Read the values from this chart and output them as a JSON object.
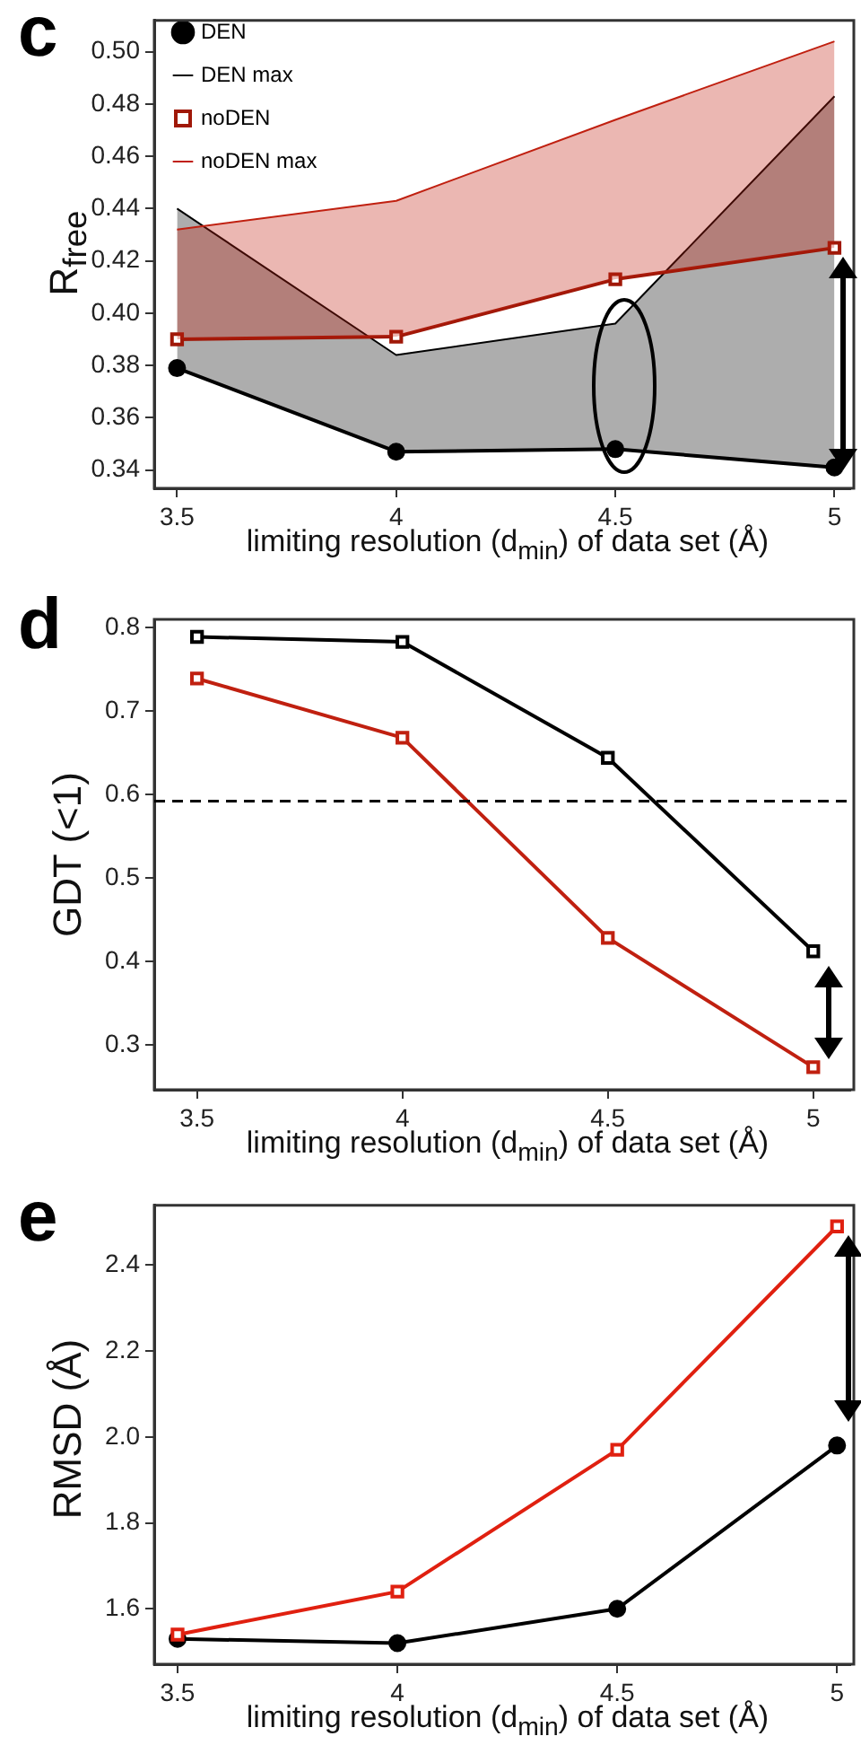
{
  "chart_data": [
    {
      "type": "line",
      "title": "c",
      "xlabel": "limiting resolution (d$_{min}$) of data set (Å)",
      "ylabel": "R$_{free}$",
      "x": [
        3.5,
        4,
        4.5,
        5
      ],
      "xlim": [
        3.448,
        5.036
      ],
      "xticks": [
        3.5,
        4,
        4.5,
        5
      ],
      "ylim": [
        0.333,
        0.512
      ],
      "yticks": [
        0.34,
        0.36,
        0.38,
        {
          "value": 0.4,
          "label": "0.40"
        },
        0.42,
        0.44,
        0.46,
        0.48,
        {
          "value": 0.5,
          "label": "0.50"
        }
      ],
      "grid": false,
      "legend": "top left",
      "series": [
        {
          "name": "DEN",
          "type": "line",
          "color": "#000000",
          "marker": "circle",
          "values": [
            0.379,
            0.347,
            0.348,
            0.341
          ]
        },
        {
          "name": "DEN max",
          "type": "area",
          "color": "#000000",
          "marker": "none",
          "values": [
            0.44,
            0.384,
            0.396,
            0.483
          ]
        },
        {
          "name": "noDEN",
          "type": "line",
          "color": "#a01808",
          "marker": "square",
          "values": [
            0.39,
            0.391,
            0.413,
            0.425
          ]
        },
        {
          "name": "noDEN max",
          "type": "area",
          "color": "#c02010",
          "marker": "none",
          "values": [
            0.432,
            0.443,
            0.474,
            0.504
          ]
        }
      ]
    },
    {
      "type": "line",
      "title": "d",
      "xlabel": "limiting resolution (d$_{min}$) of data set (Å)",
      "ylabel": "GDT (<1)",
      "x": [
        3.5,
        4,
        4.5,
        5
      ],
      "xlim": [
        3.396,
        5.09
      ],
      "xticks": [
        3.5,
        4,
        4.5,
        5
      ],
      "ylim": [
        0.246,
        0.81
      ],
      "yticks": [
        0.3,
        0.4,
        0.5,
        0.6,
        0.7,
        0.8
      ],
      "grid": false,
      "marker": "square",
      "ref_lines": [
        {
          "axis": "y",
          "value": 0.592,
          "color": "#000000",
          "line_style": "dashed"
        }
      ],
      "series": [
        {
          "color": "#000000",
          "values": [
            0.789,
            0.783,
            0.644,
            0.412
          ]
        },
        {
          "color": "#c02010",
          "values": [
            0.739,
            0.668,
            0.428,
            0.273
          ]
        }
      ]
    },
    {
      "type": "line",
      "title": "e",
      "xlabel": "limiting resolution (d$_{min}$) of data set (Å)",
      "ylabel": "RMSD (Å)",
      "x": [
        3.5,
        4,
        4.5,
        5
      ],
      "xlim": [
        3.447,
        5.03
      ],
      "xticks": [
        3.5,
        4,
        4.5,
        5
      ],
      "ylim": [
        1.471,
        2.539
      ],
      "yticks": [
        1.6,
        1.8,
        {
          "value": 2,
          "label": "2.0"
        },
        2.2,
        2.4
      ],
      "grid": false,
      "series": [
        {
          "color": "#000000",
          "marker": "circle",
          "values": [
            1.53,
            1.52,
            1.6,
            1.98
          ]
        },
        {
          "color": "#e02010",
          "marker": "square",
          "values": [
            1.54,
            1.64,
            1.97,
            2.49
          ]
        }
      ]
    }
  ]
}
